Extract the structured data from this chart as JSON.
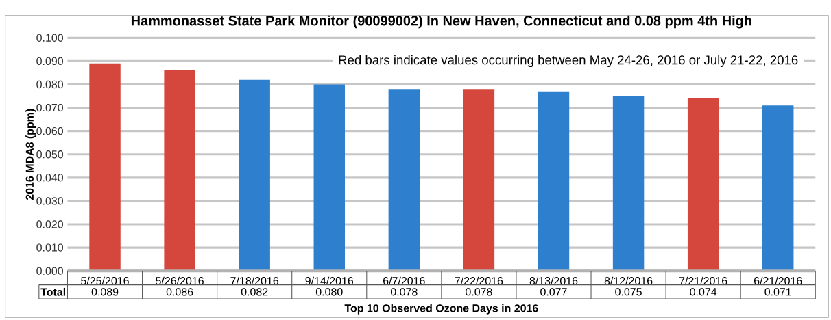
{
  "chart_data": {
    "type": "bar",
    "title": "Hammonasset State Park Monitor (90099002) In New Haven, Connecticut and 0.08 ppm 4th High",
    "xlabel": "Top 10 Observed Ozone Days in 2016",
    "ylabel": "2016 MDA8 (ppm)",
    "categories": [
      "5/25/2016",
      "5/26/2016",
      "7/18/2016",
      "9/14/2016",
      "6/7/2016",
      "7/22/2016",
      "8/13/2016",
      "8/12/2016",
      "7/21/2016",
      "6/21/2016"
    ],
    "values": [
      0.089,
      0.086,
      0.082,
      0.08,
      0.078,
      0.078,
      0.077,
      0.075,
      0.074,
      0.071
    ],
    "value_labels": [
      "0.089",
      "0.086",
      "0.082",
      "0.080",
      "0.078",
      "0.078",
      "0.077",
      "0.075",
      "0.074",
      "0.071"
    ],
    "colors": [
      "#d5473d",
      "#d5473d",
      "#2f7fcf",
      "#2f7fcf",
      "#2f7fcf",
      "#d5473d",
      "#2f7fcf",
      "#2f7fcf",
      "#d5473d",
      "#2f7fcf"
    ],
    "ylim": [
      0,
      0.1
    ],
    "yticks": [
      {
        "value": 0,
        "label": "0.000"
      },
      {
        "value": 0.01,
        "label": "0.010"
      },
      {
        "value": 0.02,
        "label": "0.020"
      },
      {
        "value": 0.03,
        "label": "0.030"
      },
      {
        "value": 0.04,
        "label": "0.040"
      },
      {
        "value": 0.05,
        "label": "0.050"
      },
      {
        "value": 0.06,
        "label": "0.060"
      },
      {
        "value": 0.07,
        "label": "0.070"
      },
      {
        "value": 0.08,
        "label": "0.080"
      },
      {
        "value": 0.09,
        "label": "0.090"
      },
      {
        "value": 0.1,
        "label": "0.100"
      }
    ],
    "grid": "y",
    "annotations": [
      "Red bars indicate values occurring between May 24-26, 2016 or July 21-22, 2016",
      {
        "text": "Total"
      }
    ]
  }
}
